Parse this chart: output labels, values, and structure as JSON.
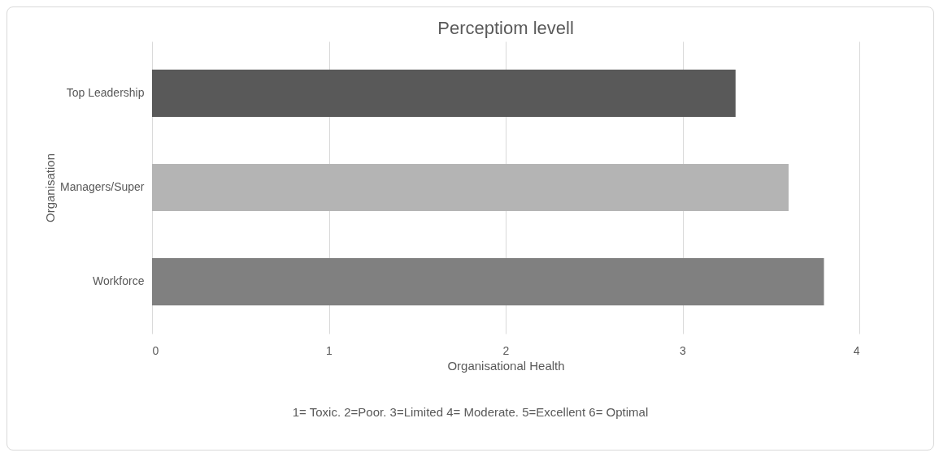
{
  "chart_data": {
    "type": "bar",
    "orientation": "horizontal",
    "title": "Perceptiom levell",
    "xlabel": "Organisational Health",
    "ylabel": "Organisation",
    "categories": [
      "Top Leadership",
      "Managers/Super",
      "Workforce"
    ],
    "values": [
      3.3,
      3.6,
      3.8
    ],
    "colors": [
      "#595959",
      "#b4b4b4",
      "#808080"
    ],
    "xlim": [
      0,
      4
    ],
    "xticks": [
      0,
      1,
      2,
      3,
      4
    ],
    "grid": "x",
    "annotations": [
      "1= Toxic. 2=Poor. 3=Limited 4= Moderate. 5=Excellent 6= Optimal"
    ]
  }
}
